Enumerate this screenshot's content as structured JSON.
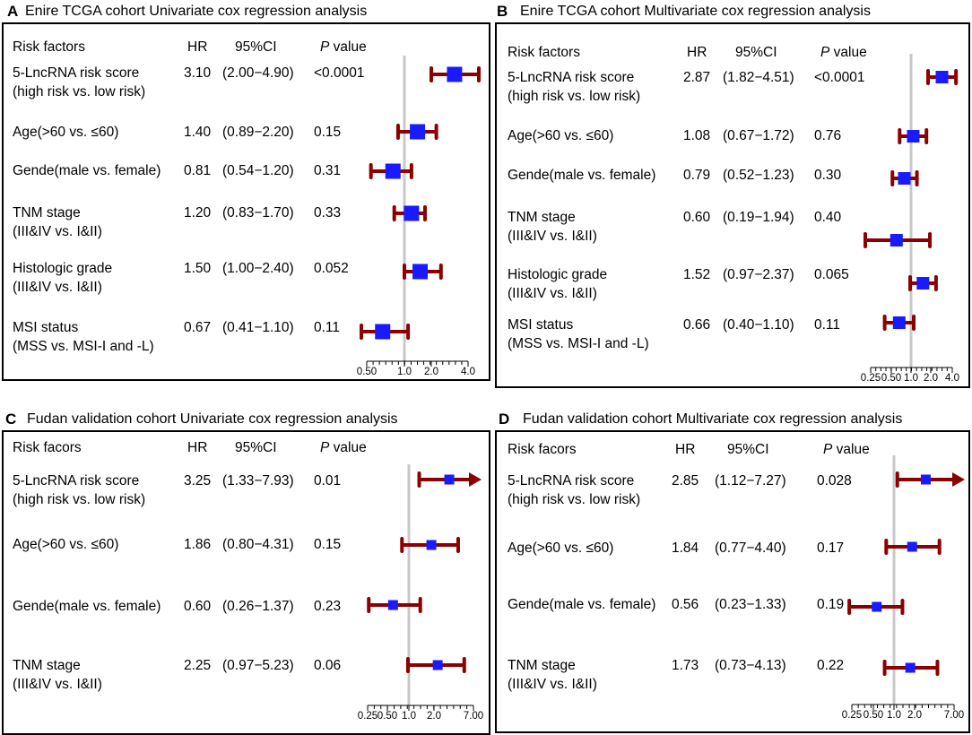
{
  "colors": {
    "ci": "#8b0000",
    "point": "#1a1aff",
    "refline": "#c8c8c8"
  },
  "panels": [
    {
      "letter": "A",
      "title": "Enire TCGA cohort Univariate cox regression analysis",
      "headers": {
        "factor": "Risk factors",
        "hr": "HR",
        "ci": "95%CI",
        "p_italic": "P",
        "p_rest": " value"
      },
      "rows": [
        {
          "label": [
            "5-LncRNA risk score",
            "(high risk vs. low risk)"
          ],
          "hr": "3.10",
          "ci": "(2.00−4.90)",
          "p": "<0.0001"
        },
        {
          "label": [
            "Age(>60 vs. ≤60)"
          ],
          "hr": "1.40",
          "ci": "(0.89−2.20)",
          "p": "0.15"
        },
        {
          "label": [
            "Gende(male vs. female)"
          ],
          "hr": "0.81",
          "ci": "(0.54−1.20)",
          "p": "0.31"
        },
        {
          "label": [
            "TNM stage",
            "(III&IV vs. I&II)"
          ],
          "hr": "1.20",
          "ci": "(0.83−1.70)",
          "p": "0.33"
        },
        {
          "label": [
            "Histologic grade",
            "(III&IV vs. I&II)"
          ],
          "hr": "1.50",
          "ci": "(1.00−2.40)",
          "p": "0.052"
        },
        {
          "label": [
            "MSI status",
            "(MSS vs. MSI-I and -L)"
          ],
          "hr": "0.67",
          "ci": "(0.41−1.10)",
          "p": "0.11"
        }
      ]
    },
    {
      "letter": "B",
      "title": "Enire TCGA cohort Multivariate cox regression analysis",
      "headers": {
        "factor": "Risk factors",
        "hr": "HR",
        "ci": "95%CI",
        "p_italic": "P",
        "p_rest": " value"
      },
      "rows": [
        {
          "label": [
            "5-LncRNA risk score",
            "(high risk vs. low risk)"
          ],
          "hr": "2.87",
          "ci": "(1.82−4.51)",
          "p": "<0.0001"
        },
        {
          "label": [
            "Age(>60 vs. ≤60)"
          ],
          "hr": "1.08",
          "ci": "(0.67−1.72)",
          "p": "0.76"
        },
        {
          "label": [
            "Gende(male vs. female)"
          ],
          "hr": "0.79",
          "ci": "(0.52−1.23)",
          "p": "0.30"
        },
        {
          "label": [
            "TNM stage",
            "(III&IV vs. I&II)"
          ],
          "hr": "0.60",
          "ci": "(0.19−1.94)",
          "p": "0.40"
        },
        {
          "label": [
            "Histologic grade",
            "(III&IV vs. I&II)"
          ],
          "hr": "1.52",
          "ci": "(0.97−2.37)",
          "p": "0.065"
        },
        {
          "label": [
            "MSI status",
            "(MSS vs. MSI-I and -L)"
          ],
          "hr": "0.66",
          "ci": "(0.40−1.10)",
          "p": "0.11"
        }
      ]
    },
    {
      "letter": "C",
      "title": "Fudan validation cohort Univariate cox regression analysis",
      "headers": {
        "factor": "Risk facors",
        "hr": "HR",
        "ci": "95%CI",
        "p_italic": "P",
        "p_rest": " value"
      },
      "rows": [
        {
          "label": [
            "5-LncRNA risk score",
            "(high risk vs. low risk)"
          ],
          "hr": "3.25",
          "ci": "(1.33−7.93)",
          "p": "0.01"
        },
        {
          "label": [
            "Age(>60 vs. ≤60)"
          ],
          "hr": "1.86",
          "ci": "(0.80−4.31)",
          "p": "0.15"
        },
        {
          "label": [
            "Gende(male vs. female)"
          ],
          "hr": "0.60",
          "ci": "(0.26−1.37)",
          "p": "0.23"
        },
        {
          "label": [
            "TNM stage",
            "(III&IV vs. I&II)"
          ],
          "hr": "2.25",
          "ci": "(0.97−5.23)",
          "p": "0.06"
        }
      ]
    },
    {
      "letter": "D",
      "title": "Fudan validation cohort Multivariate cox regression analysis",
      "headers": {
        "factor": "Risk facors",
        "hr": "HR",
        "ci": "95%CI",
        "p_italic": "P",
        "p_rest": " value"
      },
      "rows": [
        {
          "label": [
            "5-LncRNA risk score",
            "(high risk vs. low risk)"
          ],
          "hr": "2.85",
          "ci": "(1.12−7.27)",
          "p": "0.028"
        },
        {
          "label": [
            "Age(>60 vs. ≤60)"
          ],
          "hr": "1.84",
          "ci": "(0.77−4.40)",
          "p": "0.17"
        },
        {
          "label": [
            "Gende(male vs. female)"
          ],
          "hr": "0.56",
          "ci": "(0.23−1.33)",
          "p": "0.19"
        },
        {
          "label": [
            "TNM stage",
            "(III&IV vs. I&II)"
          ],
          "hr": "1.73",
          "ci": "(0.73−4.13)",
          "p": "0.22"
        }
      ]
    }
  ],
  "chart_data": [
    {
      "type": "forest",
      "title": "Enire TCGA cohort Univariate cox regression analysis",
      "xscale": "log",
      "xlim": [
        0.5,
        4.0
      ],
      "xticks": [
        0.5,
        1.0,
        2.0,
        4.0
      ],
      "xtick_labels": [
        "0.50",
        "1.0",
        "2.0",
        "4.0"
      ],
      "reference": 1.0,
      "series": [
        {
          "name": "5-LncRNA risk score",
          "hr": 3.1,
          "lo": 2.0,
          "hi": 4.9,
          "arrow": false
        },
        {
          "name": "Age",
          "hr": 1.4,
          "lo": 0.89,
          "hi": 2.2,
          "arrow": false
        },
        {
          "name": "Gender",
          "hr": 0.81,
          "lo": 0.54,
          "hi": 1.2,
          "arrow": false
        },
        {
          "name": "TNM stage",
          "hr": 1.2,
          "lo": 0.83,
          "hi": 1.7,
          "arrow": false
        },
        {
          "name": "Histologic grade",
          "hr": 1.5,
          "lo": 1.0,
          "hi": 2.4,
          "arrow": false
        },
        {
          "name": "MSI status",
          "hr": 0.67,
          "lo": 0.41,
          "hi": 1.1,
          "arrow": false
        }
      ]
    },
    {
      "type": "forest",
      "title": "Enire TCGA cohort Multivariate cox regression analysis",
      "xscale": "log",
      "xlim": [
        0.25,
        4.0
      ],
      "xticks": [
        0.25,
        0.5,
        1.0,
        2.0,
        4.0
      ],
      "xtick_labels": [
        "0.25",
        "0.50",
        "1.0",
        "2.0",
        "4.0"
      ],
      "reference": 1.0,
      "series": [
        {
          "name": "5-LncRNA risk score",
          "hr": 2.87,
          "lo": 1.82,
          "hi": 4.51,
          "arrow": false
        },
        {
          "name": "Age",
          "hr": 1.08,
          "lo": 0.67,
          "hi": 1.72,
          "arrow": false
        },
        {
          "name": "Gender",
          "hr": 0.79,
          "lo": 0.52,
          "hi": 1.23,
          "arrow": false
        },
        {
          "name": "TNM stage",
          "hr": 0.6,
          "lo": 0.19,
          "hi": 1.94,
          "arrow": false
        },
        {
          "name": "Histologic grade",
          "hr": 1.52,
          "lo": 0.97,
          "hi": 2.37,
          "arrow": false
        },
        {
          "name": "MSI status",
          "hr": 0.66,
          "lo": 0.4,
          "hi": 1.1,
          "arrow": false
        }
      ]
    },
    {
      "type": "forest",
      "title": "Fudan validation cohort Univariate cox regression analysis",
      "xscale": "log",
      "xlim": [
        0.25,
        7.0
      ],
      "xticks": [
        0.25,
        0.5,
        1.0,
        2.0,
        7.0
      ],
      "xtick_labels": [
        "0.25",
        "0.50",
        "1.0",
        "2.0",
        "7.00"
      ],
      "reference": 1.0,
      "series": [
        {
          "name": "5-LncRNA risk score",
          "hr": 3.25,
          "lo": 1.33,
          "hi": 7.93,
          "arrow": true
        },
        {
          "name": "Age",
          "hr": 1.86,
          "lo": 0.8,
          "hi": 4.31,
          "arrow": false
        },
        {
          "name": "Gender",
          "hr": 0.6,
          "lo": 0.26,
          "hi": 1.37,
          "arrow": false
        },
        {
          "name": "TNM stage",
          "hr": 2.25,
          "lo": 0.97,
          "hi": 5.23,
          "arrow": false
        }
      ]
    },
    {
      "type": "forest",
      "title": "Fudan validation cohort Multivariate cox regression analysis",
      "xscale": "log",
      "xlim": [
        0.25,
        7.0
      ],
      "xticks": [
        0.25,
        0.5,
        1.0,
        2.0,
        7.0
      ],
      "xtick_labels": [
        "0.25",
        "0.50",
        "1.0",
        "2.0",
        "7.00"
      ],
      "reference": 1.0,
      "series": [
        {
          "name": "5-LncRNA risk score",
          "hr": 2.85,
          "lo": 1.12,
          "hi": 7.27,
          "arrow": true
        },
        {
          "name": "Age",
          "hr": 1.84,
          "lo": 0.77,
          "hi": 4.4,
          "arrow": false
        },
        {
          "name": "Gender",
          "hr": 0.56,
          "lo": 0.23,
          "hi": 1.33,
          "arrow": false
        },
        {
          "name": "TNM stage",
          "hr": 1.73,
          "lo": 0.73,
          "hi": 4.13,
          "arrow": false
        }
      ]
    }
  ]
}
